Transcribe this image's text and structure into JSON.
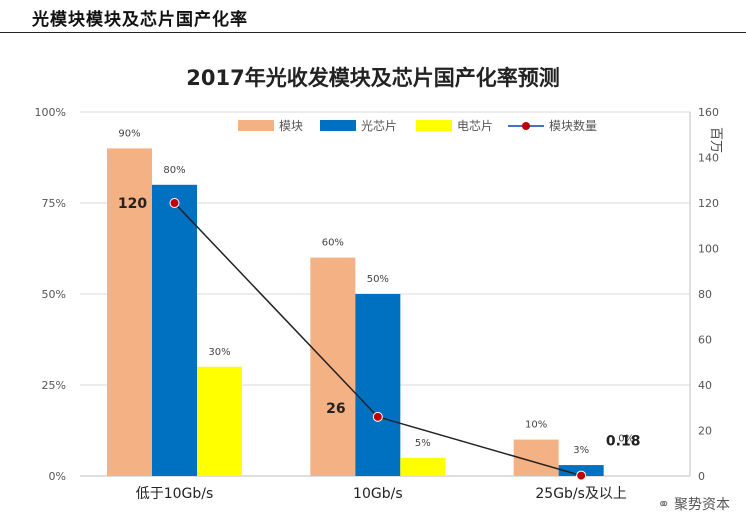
{
  "header": {
    "title": "光模块模块及芯片国产化率"
  },
  "watermark": {
    "text": "聚势资本"
  },
  "chart_data": {
    "type": "bar",
    "title": "2017年光收发模块及芯片国产化率预测",
    "categories": [
      "低于10Gb/s",
      "10Gb/s",
      "25Gb/s及以上"
    ],
    "series": [
      {
        "name": "模块",
        "values": [
          90,
          60,
          10
        ],
        "labels": [
          "90%",
          "60%",
          "10%"
        ],
        "color": "#f4b183"
      },
      {
        "name": "光芯片",
        "values": [
          80,
          50,
          3
        ],
        "labels": [
          "80%",
          "50%",
          "3%"
        ],
        "color": "#0070c0"
      },
      {
        "name": "电芯片",
        "values": [
          30,
          5,
          0
        ],
        "labels": [
          "30%",
          "5%",
          "0%"
        ],
        "color": "#ffff00"
      }
    ],
    "line_series": {
      "name": "模块数量",
      "values": [
        120,
        26,
        0.18
      ],
      "labels": [
        "120",
        "26",
        "0.18"
      ],
      "color": "#222222",
      "marker_color": "#c00000"
    },
    "y_left": {
      "ticks": [
        "0%",
        "25%",
        "50%",
        "75%",
        "100%"
      ],
      "ylim": [
        0,
        100
      ]
    },
    "y_right": {
      "ticks": [
        "0",
        "20",
        "40",
        "60",
        "80",
        "100",
        "120",
        "140",
        "160"
      ],
      "ylim": [
        0,
        160
      ],
      "unit_label": "百万"
    },
    "grid": true,
    "legend_position": "top-right"
  }
}
